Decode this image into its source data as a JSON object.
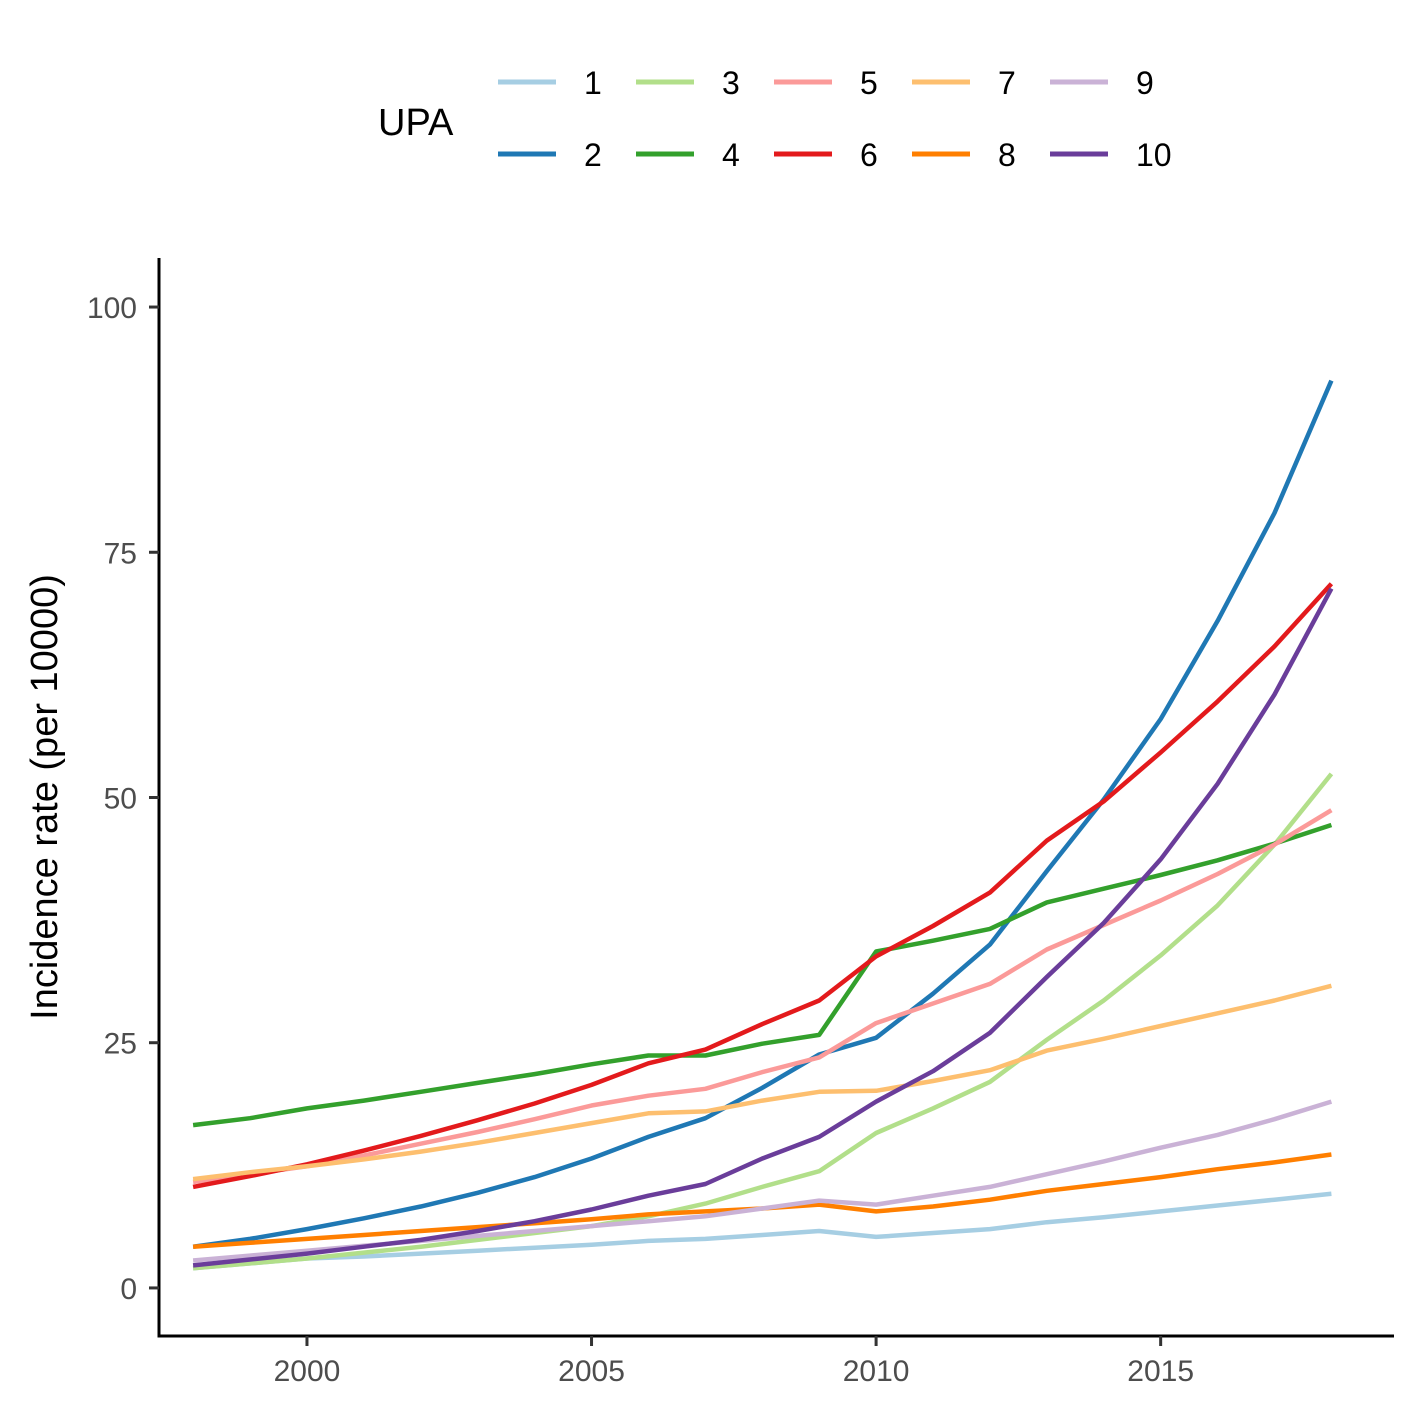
{
  "chart_data": {
    "type": "line",
    "xlabel": "",
    "ylabel": "Incidence rate (per 10000)",
    "xlim": [
      1997.4,
      2019.1
    ],
    "ylim": [
      -4.9,
      105
    ],
    "xticks": [
      2000,
      2005,
      2010,
      2015
    ],
    "yticks": [
      0,
      25,
      50,
      75,
      100
    ],
    "grid": false,
    "legend": {
      "title": "UPA",
      "position": "top"
    },
    "x": [
      1998,
      1999,
      2000,
      2001,
      2002,
      2003,
      2004,
      2005,
      2006,
      2007,
      2008,
      2009,
      2010,
      2011,
      2012,
      2013,
      2014,
      2015,
      2016,
      2017,
      2018
    ],
    "series": [
      {
        "name": "1",
        "color": "#a6cee3",
        "values": [
          2.0,
          2.5,
          3.0,
          3.2,
          3.5,
          3.8,
          4.1,
          4.4,
          4.8,
          5.0,
          5.4,
          5.8,
          5.2,
          5.6,
          6.0,
          6.7,
          7.2,
          7.8,
          8.4,
          9.0,
          9.6
        ]
      },
      {
        "name": "2",
        "color": "#1f78b4",
        "values": [
          4.2,
          5.0,
          6.0,
          7.1,
          8.3,
          9.7,
          11.3,
          13.2,
          15.4,
          17.3,
          20.4,
          23.8,
          25.5,
          30.0,
          35.0,
          42.5,
          49.8,
          58.0,
          68.0,
          79.0,
          92.5
        ]
      },
      {
        "name": "3",
        "color": "#b2df8a",
        "values": [
          2.0,
          2.5,
          3.0,
          3.6,
          4.2,
          4.9,
          5.6,
          6.3,
          7.3,
          8.6,
          10.3,
          11.9,
          15.8,
          18.3,
          21.0,
          25.3,
          29.3,
          33.9,
          39.0,
          45.2,
          52.4
        ]
      },
      {
        "name": "4",
        "color": "#33a02c",
        "values": [
          16.6,
          17.3,
          18.3,
          19.1,
          20.0,
          20.9,
          21.8,
          22.8,
          23.7,
          23.7,
          24.9,
          25.8,
          34.3,
          35.4,
          36.6,
          39.3,
          40.7,
          42.1,
          43.6,
          45.3,
          47.2
        ]
      },
      {
        "name": "5",
        "color": "#fb9a99",
        "values": [
          10.8,
          11.6,
          12.4,
          13.5,
          14.7,
          15.9,
          17.2,
          18.6,
          19.6,
          20.3,
          22.0,
          23.5,
          27.0,
          29.0,
          31.0,
          34.5,
          37.0,
          39.5,
          42.2,
          45.2,
          48.7
        ]
      },
      {
        "name": "6",
        "color": "#e31a1c",
        "values": [
          10.3,
          11.4,
          12.6,
          14.0,
          15.5,
          17.1,
          18.8,
          20.7,
          22.9,
          24.3,
          26.9,
          29.3,
          33.8,
          36.9,
          40.3,
          45.6,
          49.6,
          54.6,
          59.8,
          65.4,
          71.8
        ]
      },
      {
        "name": "7",
        "color": "#fdbf6f",
        "values": [
          11.1,
          11.8,
          12.4,
          13.1,
          13.9,
          14.8,
          15.8,
          16.8,
          17.8,
          18.0,
          19.1,
          20.0,
          20.1,
          21.1,
          22.2,
          24.2,
          25.4,
          26.7,
          28.0,
          29.3,
          30.8
        ]
      },
      {
        "name": "8",
        "color": "#ff7f00",
        "values": [
          4.2,
          4.6,
          5.0,
          5.4,
          5.8,
          6.2,
          6.6,
          7.0,
          7.5,
          7.8,
          8.1,
          8.5,
          7.8,
          8.3,
          9.0,
          9.9,
          10.6,
          11.3,
          12.1,
          12.8,
          13.6
        ]
      },
      {
        "name": "9",
        "color": "#cab2d6",
        "values": [
          2.8,
          3.3,
          3.8,
          4.3,
          4.8,
          5.3,
          5.8,
          6.3,
          6.8,
          7.3,
          8.1,
          8.9,
          8.5,
          9.4,
          10.3,
          11.6,
          12.9,
          14.3,
          15.6,
          17.2,
          19.0
        ]
      },
      {
        "name": "10",
        "color": "#6a3d9a",
        "values": [
          2.3,
          2.9,
          3.5,
          4.2,
          4.9,
          5.8,
          6.8,
          8.0,
          9.4,
          10.6,
          13.2,
          15.4,
          19.0,
          22.1,
          26.0,
          31.7,
          37.2,
          43.7,
          51.4,
          60.5,
          71.3
        ]
      }
    ]
  }
}
